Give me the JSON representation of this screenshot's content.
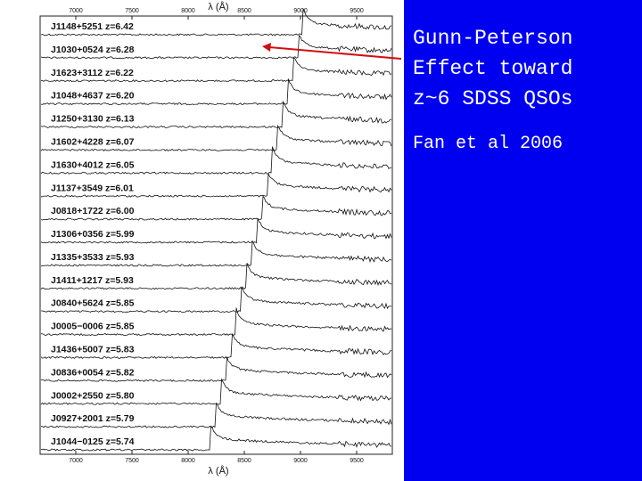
{
  "slide": {
    "title_lines": [
      "Gunn-Peterson",
      "Effect toward",
      "z~6 SDSS QSOs"
    ],
    "citation": "Fan et al 2006",
    "figure": {
      "axis_label": "λ (Å)",
      "x_ticks": [
        "7000",
        "7500",
        "8000",
        "8500",
        "9000",
        "9500"
      ],
      "quasars": [
        "J1148+5251 z=6.42",
        "J1030+0524 z=6.28",
        "J1623+3112 z=6.22",
        "J1048+4637 z=6.20",
        "J1250+3130 z=6.13",
        "J1602+4228 z=6.07",
        "J1630+4012 z=6.05",
        "J1137+3549 z=6.01",
        "J0818+1722 z=6.00",
        "J1306+0356 z=5.99",
        "J1335+3533 z=5.93",
        "J1411+1217 z=5.93",
        "J0840+5624 z=5.85",
        "J0005−0006 z=5.85",
        "J1436+5007 z=5.83",
        "J0836+0054 z=5.82",
        "J0002+2550 z=5.80",
        "J0927+2001 z=5.79",
        "J1044−0125 z=5.74"
      ]
    }
  }
}
